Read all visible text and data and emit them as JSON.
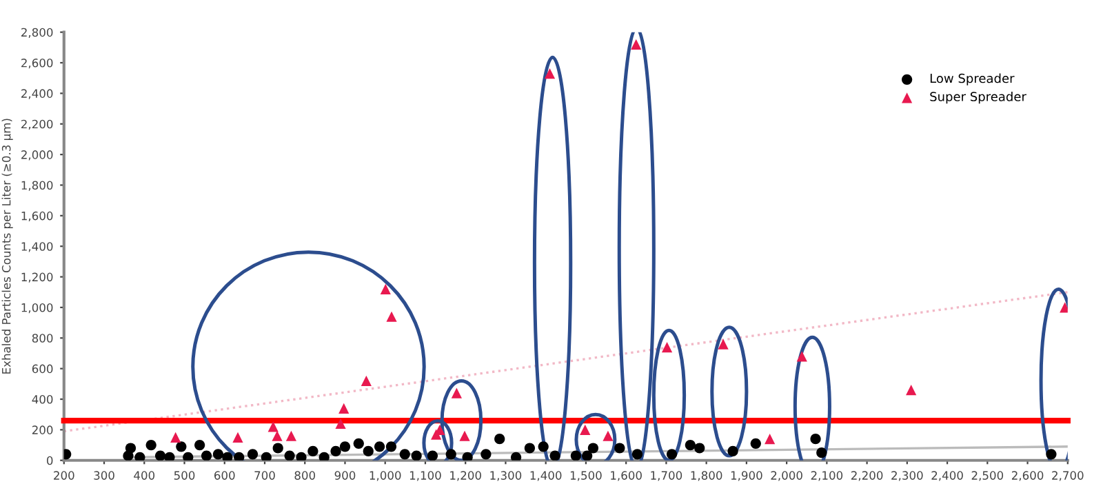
{
  "chart_data": {
    "type": "scatter",
    "ylabel": "Exhaled Particles Counts per Liter (≥0.3 µm)",
    "xlim": [
      200,
      2700
    ],
    "ylim": [
      0,
      2800
    ],
    "xticks": [
      200,
      300,
      400,
      500,
      600,
      700,
      800,
      900,
      {
        "value": 1000,
        "label": "1,000"
      },
      {
        "value": 1100,
        "label": "1,100"
      },
      {
        "value": 1200,
        "label": "1,200"
      },
      {
        "value": 1300,
        "label": "1,300"
      },
      {
        "value": 1400,
        "label": "1,400"
      },
      {
        "value": 1500,
        "label": "1,500"
      },
      {
        "value": 1600,
        "label": "1,600"
      },
      {
        "value": 1700,
        "label": "1,700"
      },
      {
        "value": 1800,
        "label": "1,800"
      },
      {
        "value": 1900,
        "label": "1,900"
      },
      {
        "value": 2000,
        "label": "2,000"
      },
      {
        "value": 2100,
        "label": "2,100"
      },
      {
        "value": 2200,
        "label": "2,200"
      },
      {
        "value": 2300,
        "label": "2,300"
      },
      {
        "value": 2400,
        "label": "2,400"
      },
      {
        "value": 2500,
        "label": "2,500"
      },
      {
        "value": 2600,
        "label": "2,600"
      },
      {
        "value": 2700,
        "label": "2,700"
      }
    ],
    "yticks": [
      0,
      200,
      400,
      600,
      800,
      {
        "value": 1000,
        "label": "1,000"
      },
      {
        "value": 1200,
        "label": "1,200"
      },
      {
        "value": 1400,
        "label": "1,400"
      },
      {
        "value": 1600,
        "label": "1,600"
      },
      {
        "value": 1800,
        "label": "1,800"
      },
      {
        "value": 2000,
        "label": "2,000"
      },
      {
        "value": 2200,
        "label": "2,200"
      },
      {
        "value": 2400,
        "label": "2,400"
      },
      {
        "value": 2600,
        "label": "2,600"
      },
      {
        "value": 2800,
        "label": "2,800"
      }
    ],
    "grid": false,
    "legend": "top right",
    "series": [
      {
        "name": "Low Spreader",
        "color": "#000000",
        "marker": "circle",
        "x": [
          205,
          360,
          366,
          389,
          417,
          440,
          463,
          492,
          509,
          538,
          555,
          584,
          607,
          636,
          670,
          704,
          733,
          762,
          791,
          820,
          848,
          877,
          900,
          934,
          958,
          986,
          1015,
          1049,
          1078,
          1118,
          1164,
          1205,
          1251,
          1285,
          1326,
          1360,
          1394,
          1423,
          1475,
          1503,
          1518,
          1584,
          1628,
          1714,
          1760,
          1783,
          1866,
          1923,
          2072,
          2087,
          2659
        ],
        "values": [
          40,
          30,
          80,
          20,
          100,
          30,
          20,
          90,
          20,
          100,
          30,
          40,
          20,
          20,
          40,
          20,
          80,
          30,
          20,
          60,
          20,
          60,
          90,
          110,
          60,
          90,
          90,
          40,
          30,
          30,
          40,
          20,
          40,
          140,
          20,
          80,
          90,
          30,
          30,
          30,
          80,
          80,
          40,
          40,
          100,
          80,
          60,
          110,
          140,
          50,
          40
        ]
      },
      {
        "name": "Super Spreader",
        "color": "#e8194f",
        "marker": "triangle",
        "x": [
          478,
          633,
          721,
          731,
          766,
          889,
          897,
          953,
          1001,
          1016,
          1127,
          1136,
          1178,
          1198,
          1410,
          1498,
          1555,
          1625,
          1702,
          1842,
          1958,
          2038,
          2310,
          2693
        ],
        "values": [
          150,
          150,
          220,
          160,
          160,
          240,
          340,
          520,
          1120,
          940,
          170,
          200,
          440,
          160,
          2530,
          200,
          160,
          2720,
          740,
          760,
          140,
          680,
          460,
          1000
        ]
      },
      {
        "type": "line",
        "color": "#f2b8c6",
        "line_style": "dotted",
        "x": [
          200,
          2700
        ],
        "values": [
          190,
          1100
        ]
      },
      {
        "type": "line",
        "color": "#bbbbbb",
        "line_style": "solid",
        "x": [
          350,
          2700
        ],
        "values": [
          20,
          90
        ]
      }
    ],
    "ref_lines": [
      {
        "axis": "y",
        "value": 260,
        "color": "#ff0000",
        "line_style": "solid"
      }
    ]
  }
}
